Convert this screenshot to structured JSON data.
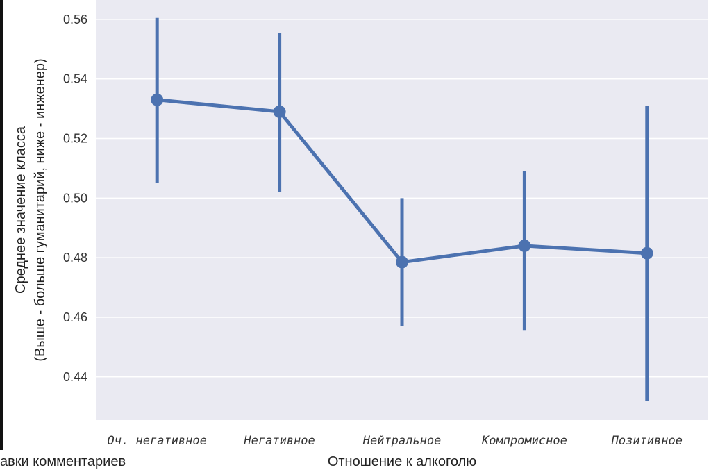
{
  "chart_data": {
    "type": "line",
    "title": "",
    "xlabel": "Отношение к алкоголю",
    "ylabel_line1": "Среднее значение класса",
    "ylabel_line2": "(Выше - больше гуманитарий, ниже - инженер)",
    "categories": [
      "Оч. негативное",
      "Негативное",
      "Нейтральное",
      "Компромисное",
      "Позитивное"
    ],
    "series": [
      {
        "values": [
          0.533,
          0.529,
          0.4785,
          0.484,
          0.4815
        ],
        "ci_low": [
          0.505,
          0.502,
          0.457,
          0.4555,
          0.432
        ],
        "ci_high": [
          0.5605,
          0.5555,
          0.5,
          0.509,
          0.531
        ]
      }
    ],
    "yticks": [
      0.44,
      0.46,
      0.48,
      0.5,
      0.52,
      0.54,
      0.56
    ],
    "ylim": [
      0.4255,
      0.5665
    ],
    "grid": true,
    "colors": {
      "series": "#4c72b0",
      "background": "#eaeaf2",
      "grid": "#ffffff"
    }
  },
  "page": {
    "bottom_cut_text": "авки комментариев"
  }
}
